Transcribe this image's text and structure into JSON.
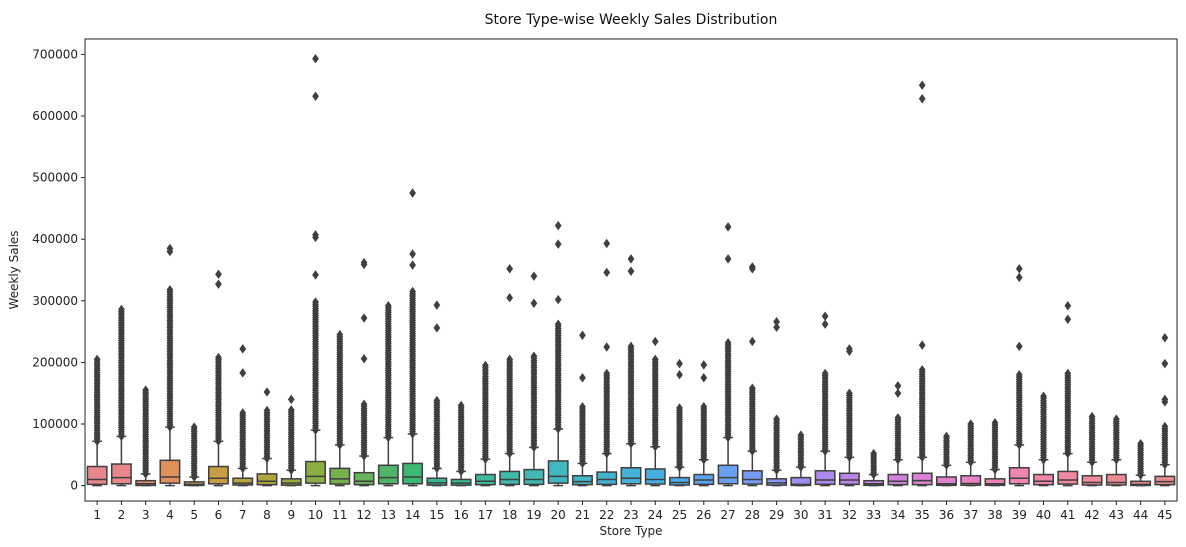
{
  "chart_data": {
    "type": "boxplot",
    "title": "Store Type-wise Weekly Sales Distribution",
    "xlabel": "Store Type",
    "ylabel": "Weekly Sales",
    "ylim": [
      -25000,
      725000
    ],
    "yticks": [
      0,
      100000,
      200000,
      300000,
      400000,
      500000,
      600000,
      700000
    ],
    "grid": false,
    "legend": "none",
    "categories": [
      "1",
      "2",
      "3",
      "4",
      "5",
      "6",
      "7",
      "8",
      "9",
      "10",
      "11",
      "12",
      "13",
      "14",
      "15",
      "16",
      "17",
      "18",
      "19",
      "20",
      "21",
      "22",
      "23",
      "24",
      "25",
      "26",
      "27",
      "28",
      "29",
      "30",
      "31",
      "32",
      "33",
      "34",
      "35",
      "36",
      "37",
      "38",
      "39",
      "40",
      "41",
      "42",
      "43",
      "44",
      "45"
    ],
    "colors": [
      "#e8878b",
      "#e8878b",
      "#e68a6f",
      "#e0905a",
      "#d79a4c",
      "#c99d44",
      "#bca23d",
      "#aea53b",
      "#9ea93c",
      "#8bad44",
      "#79b04f",
      "#65b35a",
      "#4fb566",
      "#3db874",
      "#3bb887",
      "#3cb894",
      "#3eb99f",
      "#40baaa",
      "#40bab4",
      "#41b8bf",
      "#41b6c7",
      "#42b4d0",
      "#44b1d9",
      "#47aee2",
      "#4faaea",
      "#5ba5f0",
      "#69a0f3",
      "#789af3",
      "#8b95f2",
      "#9c8ff0",
      "#ab8aeb",
      "#b986e6",
      "#c583e1",
      "#cf82db",
      "#d982d5",
      "#e182ce",
      "#e783c5",
      "#ec84bc",
      "#ef85b2",
      "#f186a8",
      "#f187a0",
      "#ef8898",
      "#ec8991",
      "#e98a8b",
      "#e88b87"
    ],
    "boxes": [
      {
        "q1": 2000,
        "median": 10000,
        "q3": 31000,
        "whislo": 0,
        "whishi": 72000,
        "outlier_min": 72000,
        "outlier_max": 205000,
        "extra_outliers": []
      },
      {
        "q1": 3000,
        "median": 13000,
        "q3": 35000,
        "whislo": 0,
        "whishi": 80000,
        "outlier_min": 80000,
        "outlier_max": 286000,
        "extra_outliers": []
      },
      {
        "q1": 300,
        "median": 3000,
        "q3": 8000,
        "whislo": 0,
        "whishi": 19000,
        "outlier_min": 19000,
        "outlier_max": 155000,
        "extra_outliers": []
      },
      {
        "q1": 4000,
        "median": 14000,
        "q3": 41000,
        "whislo": 0,
        "whishi": 95000,
        "outlier_min": 95000,
        "outlier_max": 318000,
        "extra_outliers": [
          380000,
          385000
        ]
      },
      {
        "q1": 300,
        "median": 2000,
        "q3": 6000,
        "whislo": 0,
        "whishi": 14000,
        "outlier_min": 14000,
        "outlier_max": 95000,
        "extra_outliers": []
      },
      {
        "q1": 3000,
        "median": 12000,
        "q3": 31000,
        "whislo": 0,
        "whishi": 72000,
        "outlier_min": 72000,
        "outlier_max": 208000,
        "extra_outliers": [
          327000,
          343000
        ]
      },
      {
        "q1": 1000,
        "median": 4000,
        "q3": 12000,
        "whislo": 0,
        "whishi": 28000,
        "outlier_min": 28000,
        "outlier_max": 118000,
        "extra_outliers": [
          183000,
          222000
        ]
      },
      {
        "q1": 1500,
        "median": 7000,
        "q3": 19000,
        "whislo": 0,
        "whishi": 44000,
        "outlier_min": 44000,
        "outlier_max": 122000,
        "extra_outliers": [
          152000
        ]
      },
      {
        "q1": 700,
        "median": 4000,
        "q3": 11000,
        "whislo": 0,
        "whishi": 25000,
        "outlier_min": 25000,
        "outlier_max": 123000,
        "extra_outliers": [
          140000
        ]
      },
      {
        "q1": 4000,
        "median": 15000,
        "q3": 39000,
        "whislo": 0,
        "whishi": 90000,
        "outlier_min": 90000,
        "outlier_max": 298000,
        "extra_outliers": [
          342000,
          403000,
          407000,
          632000,
          693000
        ]
      },
      {
        "q1": 2500,
        "median": 11000,
        "q3": 28000,
        "whislo": 0,
        "whishi": 66000,
        "outlier_min": 66000,
        "outlier_max": 245000,
        "extra_outliers": []
      },
      {
        "q1": 1500,
        "median": 7000,
        "q3": 21000,
        "whislo": 0,
        "whishi": 48000,
        "outlier_min": 48000,
        "outlier_max": 132000,
        "extra_outliers": [
          206000,
          272000,
          359000,
          362000
        ]
      },
      {
        "q1": 3000,
        "median": 13000,
        "q3": 33000,
        "whislo": 0,
        "whishi": 78000,
        "outlier_min": 78000,
        "outlier_max": 292000,
        "extra_outliers": []
      },
      {
        "q1": 3000,
        "median": 14000,
        "q3": 36000,
        "whislo": 0,
        "whishi": 84000,
        "outlier_min": 84000,
        "outlier_max": 315000,
        "extra_outliers": [
          358000,
          376000,
          475000
        ]
      },
      {
        "q1": 800,
        "median": 4500,
        "q3": 12000,
        "whislo": 0,
        "whishi": 28000,
        "outlier_min": 28000,
        "outlier_max": 138000,
        "extra_outliers": [
          256000,
          293000
        ]
      },
      {
        "q1": 700,
        "median": 4000,
        "q3": 10000,
        "whislo": 0,
        "whishi": 23000,
        "outlier_min": 23000,
        "outlier_max": 130000,
        "extra_outliers": []
      },
      {
        "q1": 1500,
        "median": 7000,
        "q3": 18000,
        "whislo": 0,
        "whishi": 43000,
        "outlier_min": 43000,
        "outlier_max": 195000,
        "extra_outliers": []
      },
      {
        "q1": 2000,
        "median": 10000,
        "q3": 23000,
        "whislo": 0,
        "whishi": 52000,
        "outlier_min": 52000,
        "outlier_max": 205000,
        "extra_outliers": [
          305000,
          352000
        ]
      },
      {
        "q1": 2000,
        "median": 10000,
        "q3": 26000,
        "whislo": 0,
        "whishi": 62000,
        "outlier_min": 62000,
        "outlier_max": 210000,
        "extra_outliers": [
          296000,
          340000
        ]
      },
      {
        "q1": 4000,
        "median": 15000,
        "q3": 40000,
        "whislo": 0,
        "whishi": 92000,
        "outlier_min": 92000,
        "outlier_max": 262000,
        "extra_outliers": [
          302000,
          392000,
          422000
        ]
      },
      {
        "q1": 1500,
        "median": 6500,
        "q3": 16000,
        "whislo": 0,
        "whishi": 36000,
        "outlier_min": 36000,
        "outlier_max": 128000,
        "extra_outliers": [
          175000,
          244000
        ]
      },
      {
        "q1": 2000,
        "median": 10000,
        "q3": 22000,
        "whislo": 0,
        "whishi": 52000,
        "outlier_min": 52000,
        "outlier_max": 182000,
        "extra_outliers": [
          225000,
          346000,
          393000
        ]
      },
      {
        "q1": 3000,
        "median": 12000,
        "q3": 29000,
        "whislo": 0,
        "whishi": 68000,
        "outlier_min": 68000,
        "outlier_max": 226000,
        "extra_outliers": [
          348000,
          368000
        ]
      },
      {
        "q1": 2500,
        "median": 10000,
        "q3": 27000,
        "whislo": 0,
        "whishi": 63000,
        "outlier_min": 63000,
        "outlier_max": 205000,
        "extra_outliers": [
          234000
        ]
      },
      {
        "q1": 1000,
        "median": 5000,
        "q3": 13000,
        "whislo": 0,
        "whishi": 30000,
        "outlier_min": 30000,
        "outlier_max": 126000,
        "extra_outliers": [
          180000,
          198000
        ]
      },
      {
        "q1": 2000,
        "median": 9000,
        "q3": 18000,
        "whislo": 0,
        "whishi": 42000,
        "outlier_min": 42000,
        "outlier_max": 128000,
        "extra_outliers": [
          175000,
          196000
        ]
      },
      {
        "q1": 3000,
        "median": 13000,
        "q3": 33000,
        "whislo": 0,
        "whishi": 78000,
        "outlier_min": 78000,
        "outlier_max": 232000,
        "extra_outliers": [
          368000,
          420000
        ]
      },
      {
        "q1": 2500,
        "median": 10000,
        "q3": 24000,
        "whislo": 0,
        "whishi": 56000,
        "outlier_min": 56000,
        "outlier_max": 158000,
        "extra_outliers": [
          234000,
          352000,
          355000
        ]
      },
      {
        "q1": 800,
        "median": 4500,
        "q3": 11000,
        "whislo": 0,
        "whishi": 25000,
        "outlier_min": 25000,
        "outlier_max": 108000,
        "extra_outliers": [
          257000,
          266000
        ]
      },
      {
        "q1": 300,
        "median": 2000,
        "q3": 13000,
        "whislo": 0,
        "whishi": 30000,
        "outlier_min": 30000,
        "outlier_max": 82000,
        "extra_outliers": []
      },
      {
        "q1": 2000,
        "median": 9000,
        "q3": 24000,
        "whislo": 0,
        "whishi": 56000,
        "outlier_min": 56000,
        "outlier_max": 182000,
        "extra_outliers": [
          262000,
          275000
        ]
      },
      {
        "q1": 2000,
        "median": 9000,
        "q3": 20000,
        "whislo": 0,
        "whishi": 46000,
        "outlier_min": 46000,
        "outlier_max": 150000,
        "extra_outliers": [
          218000,
          222000
        ]
      },
      {
        "q1": 500,
        "median": 3000,
        "q3": 8000,
        "whislo": 0,
        "whishi": 18000,
        "outlier_min": 18000,
        "outlier_max": 52000,
        "extra_outliers": []
      },
      {
        "q1": 1500,
        "median": 7000,
        "q3": 18000,
        "whislo": 0,
        "whishi": 42000,
        "outlier_min": 42000,
        "outlier_max": 110000,
        "extra_outliers": [
          150000,
          162000
        ]
      },
      {
        "q1": 1500,
        "median": 8000,
        "q3": 20000,
        "whislo": 0,
        "whishi": 46000,
        "outlier_min": 46000,
        "outlier_max": 188000,
        "extra_outliers": [
          228000,
          628000,
          650000
        ]
      },
      {
        "q1": 500,
        "median": 3000,
        "q3": 14000,
        "whislo": 0,
        "whishi": 33000,
        "outlier_min": 33000,
        "outlier_max": 80000,
        "extra_outliers": []
      },
      {
        "q1": 700,
        "median": 3500,
        "q3": 16000,
        "whislo": 0,
        "whishi": 38000,
        "outlier_min": 38000,
        "outlier_max": 100000,
        "extra_outliers": []
      },
      {
        "q1": 500,
        "median": 3000,
        "q3": 11000,
        "whislo": 0,
        "whishi": 26000,
        "outlier_min": 26000,
        "outlier_max": 102000,
        "extra_outliers": []
      },
      {
        "q1": 3000,
        "median": 12000,
        "q3": 29000,
        "whislo": 0,
        "whishi": 66000,
        "outlier_min": 66000,
        "outlier_max": 180000,
        "extra_outliers": [
          226000,
          338000,
          352000
        ]
      },
      {
        "q1": 1500,
        "median": 7000,
        "q3": 18000,
        "whislo": 0,
        "whishi": 42000,
        "outlier_min": 42000,
        "outlier_max": 145000,
        "extra_outliers": []
      },
      {
        "q1": 2500,
        "median": 9000,
        "q3": 23000,
        "whislo": 0,
        "whishi": 52000,
        "outlier_min": 52000,
        "outlier_max": 182000,
        "extra_outliers": [
          270000,
          292000
        ]
      },
      {
        "q1": 1000,
        "median": 5000,
        "q3": 16000,
        "whislo": 0,
        "whishi": 38000,
        "outlier_min": 38000,
        "outlier_max": 112000,
        "extra_outliers": []
      },
      {
        "q1": 1000,
        "median": 5000,
        "q3": 18000,
        "whislo": 0,
        "whishi": 42000,
        "outlier_min": 42000,
        "outlier_max": 108000,
        "extra_outliers": []
      },
      {
        "q1": 300,
        "median": 2000,
        "q3": 7000,
        "whislo": 0,
        "whishi": 17000,
        "outlier_min": 17000,
        "outlier_max": 68000,
        "extra_outliers": []
      },
      {
        "q1": 1500,
        "median": 6500,
        "q3": 15000,
        "whislo": 0,
        "whishi": 34000,
        "outlier_min": 34000,
        "outlier_max": 96000,
        "extra_outliers": [
          136000,
          140000,
          198000,
          240000
        ]
      }
    ]
  }
}
